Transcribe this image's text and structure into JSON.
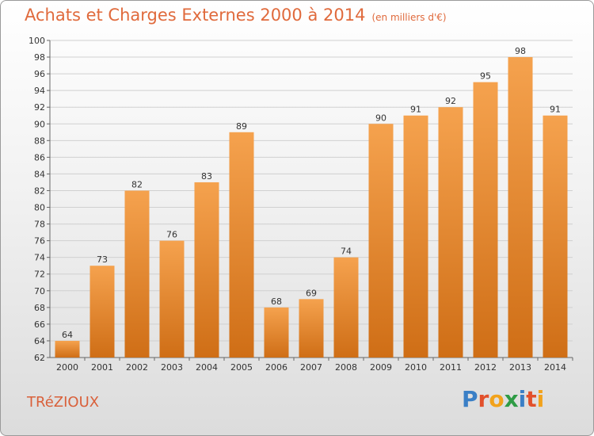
{
  "title": "Achats et Charges Externes 2000 à 2014",
  "subtitle": "(en milliers d'€)",
  "commune": "TRéZIOUX",
  "logo": {
    "text": "Proxiti",
    "letters": [
      "P",
      "r",
      "o",
      "x",
      "i",
      "t",
      "i"
    ],
    "colors": [
      "#3a7fc6",
      "#e2502b",
      "#f2a21b",
      "#2f9c45",
      "#3a7fc6",
      "#e2502b",
      "#f2a21b"
    ]
  },
  "colors": {
    "bar_top": "#f5a24e",
    "bar_bottom": "#cf6e16",
    "title": "#e06a3c"
  },
  "chart_data": {
    "type": "bar",
    "categories": [
      "2000",
      "2001",
      "2002",
      "2003",
      "2004",
      "2005",
      "2006",
      "2007",
      "2008",
      "2009",
      "2010",
      "2011",
      "2012",
      "2013",
      "2014"
    ],
    "values": [
      64,
      73,
      82,
      76,
      83,
      89,
      68,
      69,
      74,
      90,
      91,
      92,
      95,
      98,
      91
    ],
    "ylim": [
      62,
      100
    ],
    "yticks": [
      62,
      64,
      66,
      68,
      70,
      72,
      74,
      76,
      78,
      80,
      82,
      84,
      86,
      88,
      90,
      92,
      94,
      96,
      98,
      100
    ],
    "grid": true
  }
}
